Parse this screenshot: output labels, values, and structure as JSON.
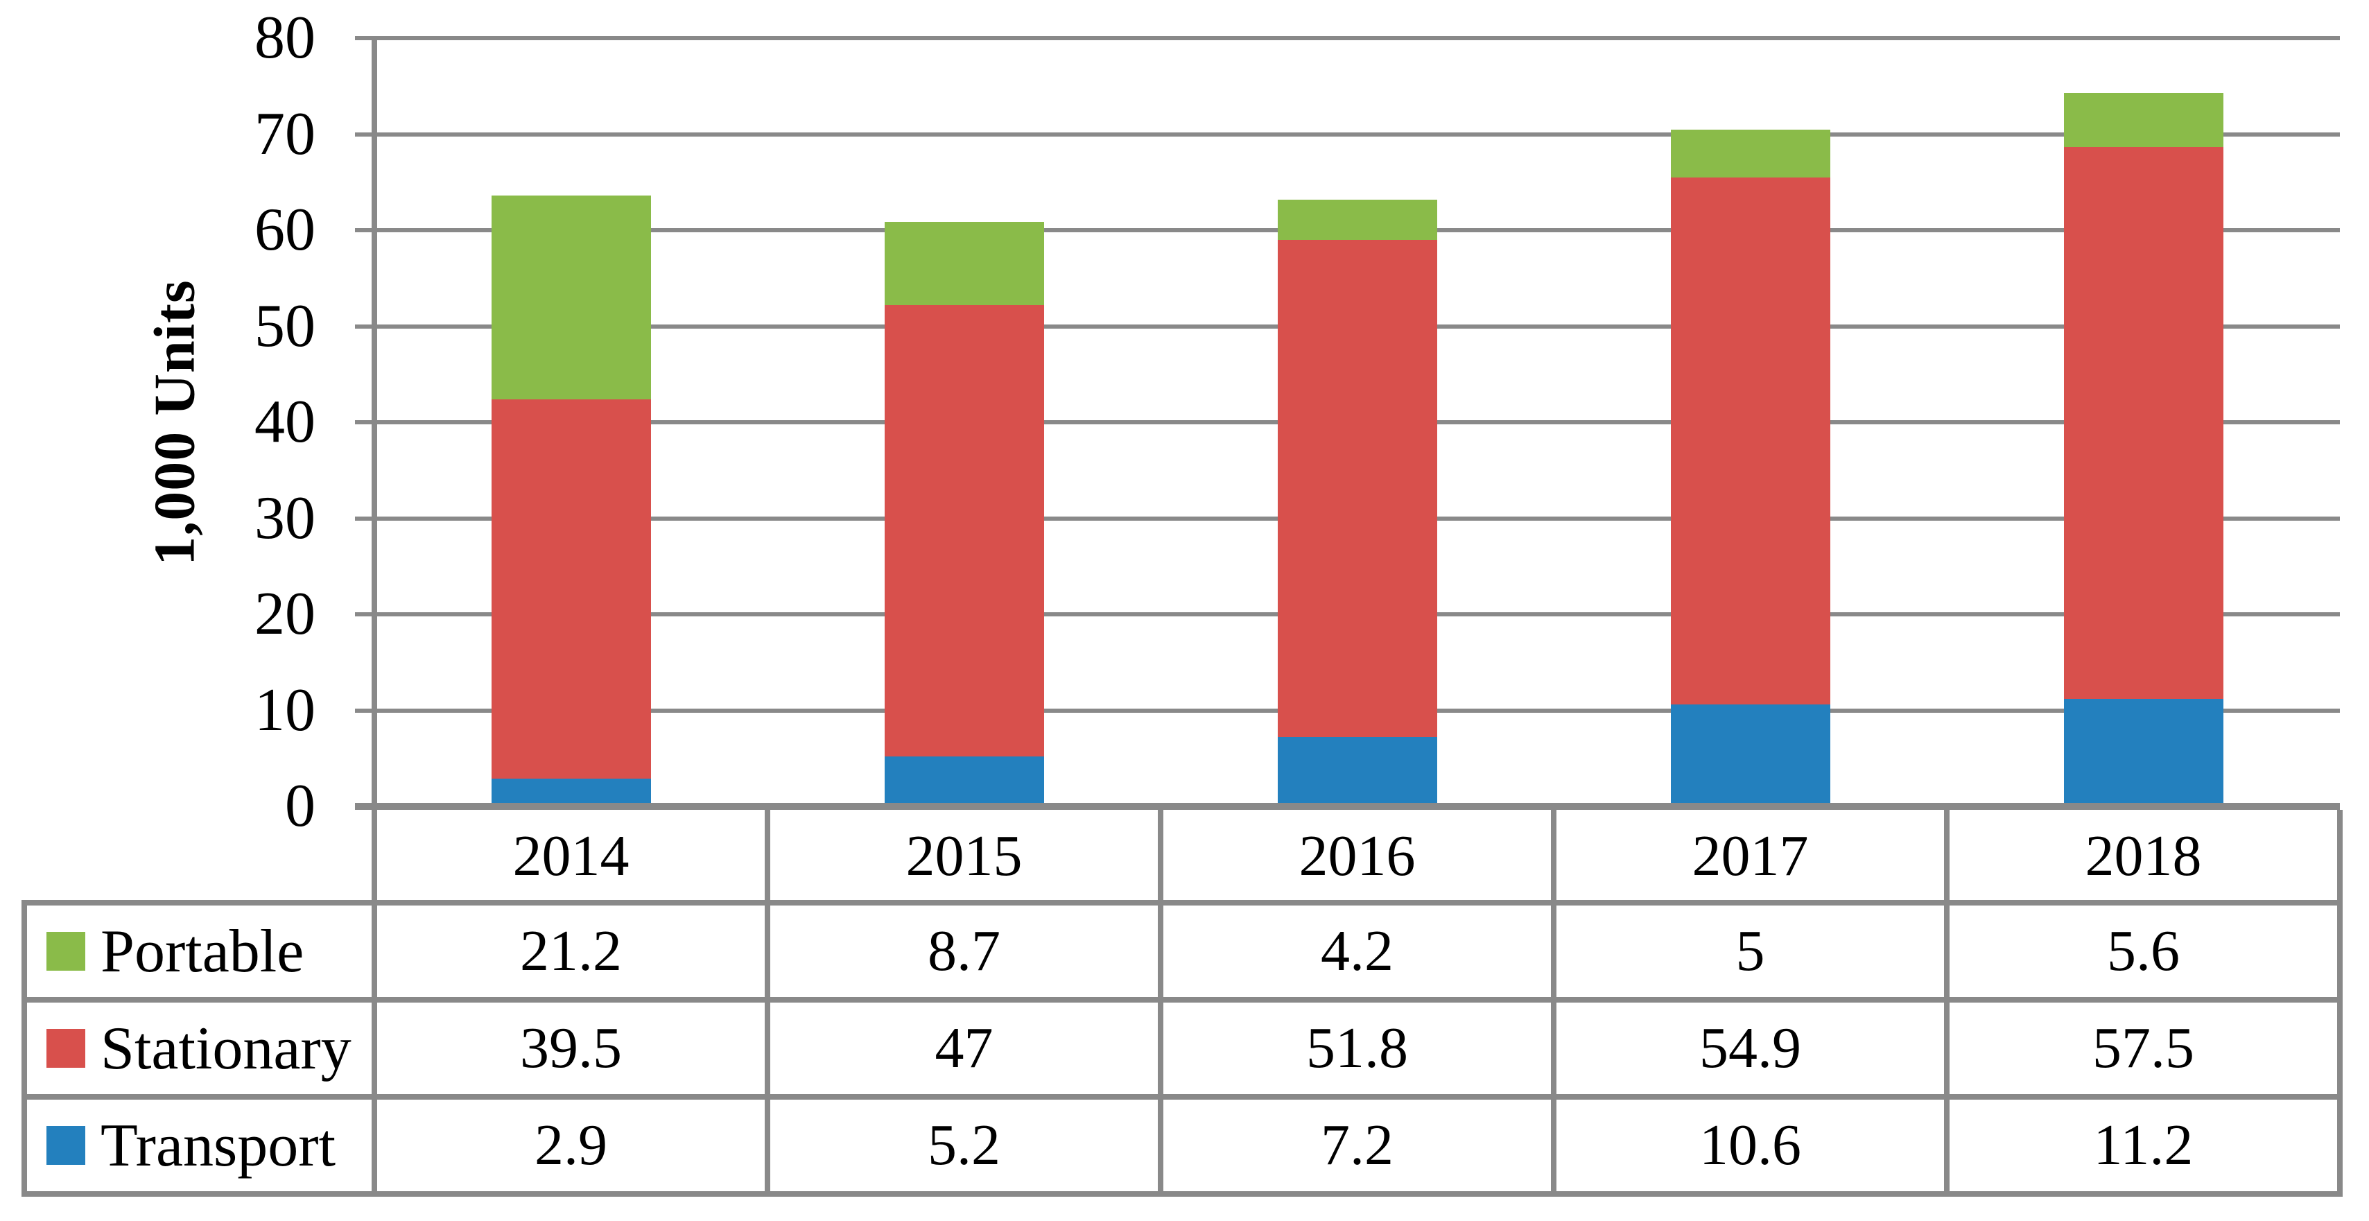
{
  "figure": {
    "background": "#FFFFFF"
  },
  "chart_data": {
    "type": "bar",
    "stacked": true,
    "title": "",
    "ylabel": "1,000 Units",
    "xlabel": "",
    "categories": [
      "2014",
      "2015",
      "2016",
      "2017",
      "2018"
    ],
    "series": [
      {
        "name": "Portable",
        "color": "#8ABB49",
        "values": [
          21.2,
          8.7,
          4.2,
          5,
          5.6
        ]
      },
      {
        "name": "Stationary",
        "color": "#D8504C",
        "values": [
          39.5,
          47,
          51.8,
          54.9,
          57.5
        ]
      },
      {
        "name": "Transport",
        "color": "#2380BE",
        "values": [
          2.9,
          5.2,
          7.2,
          10.6,
          11.2
        ]
      }
    ],
    "stack_order_bottom_to_top": [
      "Transport",
      "Stationary",
      "Portable"
    ],
    "ylim": [
      0,
      80
    ],
    "yticks": [
      0,
      10,
      20,
      30,
      40,
      50,
      60,
      70,
      80
    ],
    "grid": "horizontal",
    "legend_position": "table-first-column",
    "colors": {
      "gridline": "#898989",
      "axis": "#898989",
      "text": "#000000",
      "background": "#FFFFFF"
    }
  }
}
